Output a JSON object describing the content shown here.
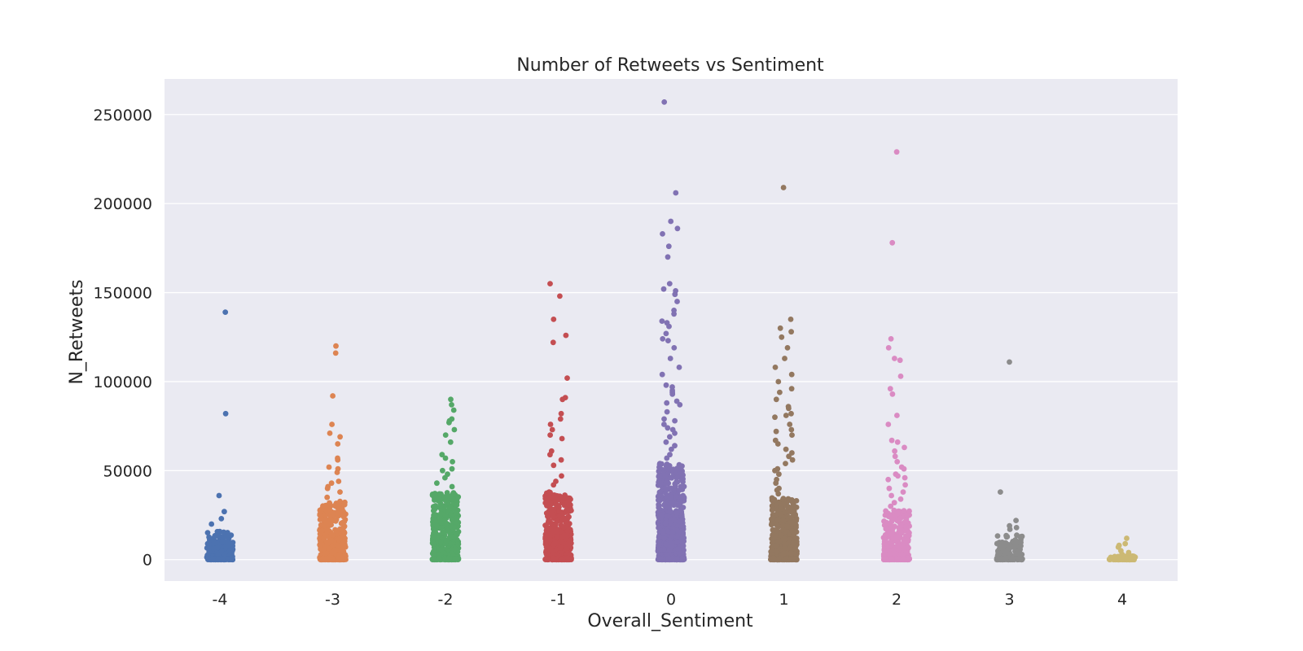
{
  "chart_data": {
    "type": "scatter",
    "style": "strip plot (jittered)",
    "title": "Number of Retweets vs Sentiment",
    "xlabel": "Overall_Sentiment",
    "ylabel": "N_Retweets",
    "ylim": [
      -12000,
      270000
    ],
    "y_ticks": [
      0,
      50000,
      100000,
      150000,
      200000,
      250000
    ],
    "y_tick_labels": [
      "0",
      "50000",
      "100000",
      "150000",
      "200000",
      "250000"
    ],
    "grid": true,
    "background": "#eaeaf2",
    "categories": [
      "-4",
      "-3",
      "-2",
      "-1",
      "0",
      "1",
      "2",
      "3",
      "4"
    ],
    "series": [
      {
        "category": "-4",
        "color": "#4c72b0",
        "outliers": [
          139000,
          82000,
          36000,
          27000,
          23000,
          20000
        ],
        "dense_max": 16000
      },
      {
        "category": "-3",
        "color": "#dd8452",
        "outliers": [
          120000,
          116000,
          92000,
          76000,
          71000,
          69000,
          65000,
          57000,
          56000,
          52000,
          51000,
          49000,
          44000,
          43000,
          41000,
          40000,
          38000,
          35000
        ],
        "dense_max": 33000
      },
      {
        "category": "-2",
        "color": "#55a868",
        "outliers": [
          90000,
          87000,
          84000,
          79000,
          78000,
          77000,
          73000,
          70000,
          66000,
          59000,
          57000,
          55000,
          51000,
          50000,
          48000,
          46000,
          43000,
          41000
        ],
        "dense_max": 38000
      },
      {
        "category": "-1",
        "color": "#c44e52",
        "outliers": [
          155000,
          148000,
          135000,
          126000,
          122000,
          102000,
          91000,
          90000,
          82000,
          79000,
          76000,
          73000,
          70000,
          68000,
          61000,
          59000,
          56000,
          53000,
          47000,
          44000,
          42000
        ],
        "dense_max": 38000
      },
      {
        "category": "0",
        "color": "#8172b3",
        "outliers": [
          257000,
          206000,
          190000,
          186000,
          183000,
          176000,
          170000,
          155000,
          152000,
          151000,
          149000,
          145000,
          140000,
          138000,
          134000,
          133000,
          131000,
          127000,
          124000,
          123000,
          119000,
          113000,
          108000,
          104000,
          98000,
          97000,
          95000,
          94000,
          93000,
          89000,
          88000,
          87000,
          83000,
          79000,
          78000,
          76000,
          74000,
          73000,
          71000,
          69000,
          66000,
          64000,
          62000,
          59000,
          57000
        ],
        "dense_max": 54000
      },
      {
        "category": "1",
        "color": "#937860",
        "outliers": [
          209000,
          135000,
          130000,
          128000,
          125000,
          119000,
          113000,
          108000,
          104000,
          100000,
          96000,
          94000,
          90000,
          86000,
          85000,
          82000,
          81000,
          80000,
          76000,
          73000,
          72000,
          70000,
          67000,
          65000,
          62000,
          60000,
          58000,
          56000,
          54000,
          51000,
          50000,
          48000,
          45000,
          43000,
          40000,
          39000,
          37000
        ],
        "dense_max": 35000
      },
      {
        "category": "2",
        "color": "#da8bc3",
        "outliers": [
          229000,
          178000,
          124000,
          119000,
          113000,
          112000,
          103000,
          96000,
          93000,
          81000,
          76000,
          67000,
          66000,
          63000,
          61000,
          58000,
          55000,
          52000,
          51000,
          48000,
          47000,
          46000,
          45000,
          42000,
          40000,
          38000,
          36000,
          34000,
          32000,
          30000
        ],
        "dense_max": 28000
      },
      {
        "category": "3",
        "color": "#8c8c8c",
        "outliers": [
          111000,
          38000,
          22000,
          19000,
          18000,
          17000
        ],
        "dense_max": 14000
      },
      {
        "category": "4",
        "color": "#ccb974",
        "outliers": [
          12000,
          9000,
          8000,
          7000,
          5000,
          4000,
          3000
        ],
        "dense_max": 2000
      }
    ]
  }
}
